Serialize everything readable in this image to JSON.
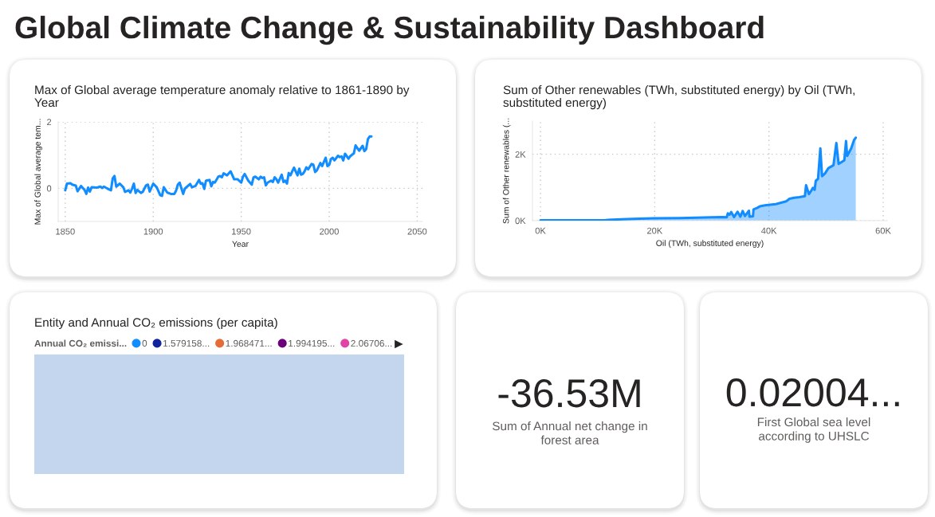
{
  "chart_data": [
    {
      "type": "other",
      "title": "Global Climate Change & Sustainability Dashboard"
    },
    {
      "type": "line",
      "title": "Max of Global average temperature anomaly relative to 1861-1890 by Year",
      "xlabel": "Year",
      "ylabel": "Max of Global average tem...",
      "x": [
        1850,
        1851,
        1853,
        1854,
        1856,
        1857,
        1859,
        1861,
        1862,
        1863,
        1864,
        1865,
        1868,
        1870,
        1871,
        1872,
        1874,
        1876,
        1877,
        1878,
        1879,
        1881,
        1883,
        1884,
        1886,
        1887,
        1888,
        1889,
        1890,
        1891,
        1893,
        1894,
        1896,
        1897,
        1898,
        1900,
        1902,
        1904,
        1905,
        1906,
        1908,
        1910,
        1912,
        1913,
        1914,
        1915,
        1917,
        1918,
        1921,
        1922,
        1924,
        1926,
        1927,
        1928,
        1929,
        1930,
        1932,
        1933,
        1934,
        1935,
        1937,
        1938,
        1939,
        1940,
        1942,
        1944,
        1945,
        1946,
        1948,
        1950,
        1951,
        1952,
        1954,
        1956,
        1957,
        1958,
        1960,
        1961,
        1962,
        1963,
        1964,
        1965,
        1967,
        1968,
        1969,
        1970,
        1971,
        1973,
        1974,
        1975,
        1976,
        1977,
        1978,
        1979,
        1980,
        1982,
        1983,
        1984,
        1985,
        1986,
        1987,
        1988,
        1990,
        1991,
        1992,
        1993,
        1995,
        1996,
        1998,
        1999,
        2000,
        2001,
        2002,
        2003,
        2005,
        2006,
        2007,
        2008,
        2009,
        2011,
        2012,
        2014,
        2015,
        2017,
        2019,
        2020,
        2021,
        2022,
        2023,
        2024
      ],
      "series": [
        {
          "color": "#118dff",
          "values": [
            -0.06,
            0.14,
            0.15,
            0.11,
            0.08,
            -0.09,
            0.07,
            -0.05,
            -0.17,
            0.02,
            -0.1,
            0.03,
            0.02,
            0.05,
            0.01,
            0.05,
            -0.01,
            -0.06,
            0.3,
            0.37,
            0.05,
            0.14,
            0.03,
            -0.11,
            -0.06,
            -0.13,
            -0.01,
            0.14,
            -0.14,
            -0.05,
            -0.14,
            -0.11,
            0.09,
            0.11,
            -0.1,
            0.14,
            0.03,
            -0.21,
            -0.23,
            0.03,
            -0.13,
            -0.17,
            -0.17,
            -0.07,
            0.11,
            0.17,
            -0.17,
            -0.01,
            0.13,
            0.03,
            0.07,
            0.25,
            0.14,
            0.15,
            -0.02,
            0.23,
            0.25,
            0.06,
            0.19,
            0.17,
            0.35,
            0.37,
            0.33,
            0.45,
            0.39,
            0.51,
            0.39,
            0.27,
            0.27,
            0.17,
            0.35,
            0.43,
            0.23,
            0.11,
            0.33,
            0.35,
            0.27,
            0.35,
            0.31,
            0.33,
            0.09,
            0.17,
            0.23,
            0.19,
            0.33,
            0.27,
            0.17,
            0.41,
            0.19,
            0.23,
            0.14,
            0.46,
            0.39,
            0.51,
            0.62,
            0.39,
            0.59,
            0.41,
            0.43,
            0.51,
            0.63,
            0.57,
            0.73,
            0.71,
            0.49,
            0.54,
            0.76,
            0.67,
            0.92,
            0.67,
            0.7,
            0.88,
            0.92,
            0.84,
            0.98,
            0.94,
            0.96,
            0.84,
            1.04,
            0.89,
            0.97,
            1.05,
            1.29,
            1.13,
            1.28,
            1.12,
            1.18,
            1.48,
            1.56,
            1.56
          ]
        }
      ],
      "xlim": [
        1846,
        2053
      ],
      "ylim": [
        -1,
        2
      ],
      "xticks": [
        1850,
        1900,
        1950,
        2000,
        2050
      ],
      "yticks": [
        0,
        2
      ],
      "grid": true
    },
    {
      "type": "area",
      "title": "Sum of Other renewables (TWh, substituted energy) by Oil (TWh, substituted energy)",
      "xlabel": "Oil (TWh, substituted energy)",
      "ylabel": "Sum of Other renewables (...",
      "x": [
        0,
        11400,
        15100,
        19800,
        24400,
        30000,
        31900,
        32600,
        32800,
        33100,
        33400,
        33900,
        34500,
        35000,
        35400,
        35800,
        36500,
        36600,
        37200,
        37300,
        37900,
        38400,
        39300,
        40200,
        41200,
        42100,
        43000,
        43600,
        44400,
        45300,
        46300,
        46500,
        47000,
        47400,
        47700,
        48000,
        48200,
        48600,
        49000,
        49300,
        49800,
        50400,
        51300,
        51800,
        52200,
        53200,
        53500,
        53700,
        54400,
        54900,
        55200
      ],
      "series": [
        {
          "color": "#118dff",
          "values": [
            10,
            20,
            50,
            70,
            80,
            100,
            110,
            100,
            220,
            180,
            260,
            110,
            270,
            120,
            290,
            140,
            300,
            120,
            130,
            340,
            380,
            430,
            460,
            480,
            500,
            540,
            580,
            660,
            690,
            710,
            740,
            1070,
            800,
            900,
            990,
            930,
            1200,
            1260,
            2180,
            1340,
            1420,
            1580,
            1670,
            2340,
            1710,
            1820,
            2400,
            1950,
            2180,
            2430,
            2500
          ]
        }
      ],
      "xlim": [
        -1400,
        60700
      ],
      "ylim": [
        0,
        3000
      ],
      "xticks": [
        {
          "value": 0,
          "label": "0K"
        },
        {
          "value": 20000,
          "label": "20K"
        },
        {
          "value": 40000,
          "label": "40K"
        },
        {
          "value": 60000,
          "label": "60K"
        }
      ],
      "yticks": [
        {
          "value": 0,
          "label": "0K"
        },
        {
          "value": 2000,
          "label": "2K"
        }
      ],
      "grid": true
    },
    {
      "type": "other",
      "title": "Entity and Annual CO₂ emissions (per capita)",
      "legend_title": "Annual CO₂ emissi...",
      "legend": "top left",
      "series": [
        {
          "name": "0",
          "color": "#118dff"
        },
        {
          "name": "1.579158...",
          "color": "#12239e"
        },
        {
          "name": "1.968471...",
          "color": "#e66c37"
        },
        {
          "name": "1.994195...",
          "color": "#6b007b"
        },
        {
          "name": "2.06706...",
          "color": "#e044a7"
        }
      ]
    },
    {
      "type": "other",
      "title": "-36.53M",
      "subtitle": "Sum of Annual net change in forest area"
    },
    {
      "type": "other",
      "title": "0.02004...",
      "subtitle": "First Global sea level according to UHSLC"
    }
  ]
}
